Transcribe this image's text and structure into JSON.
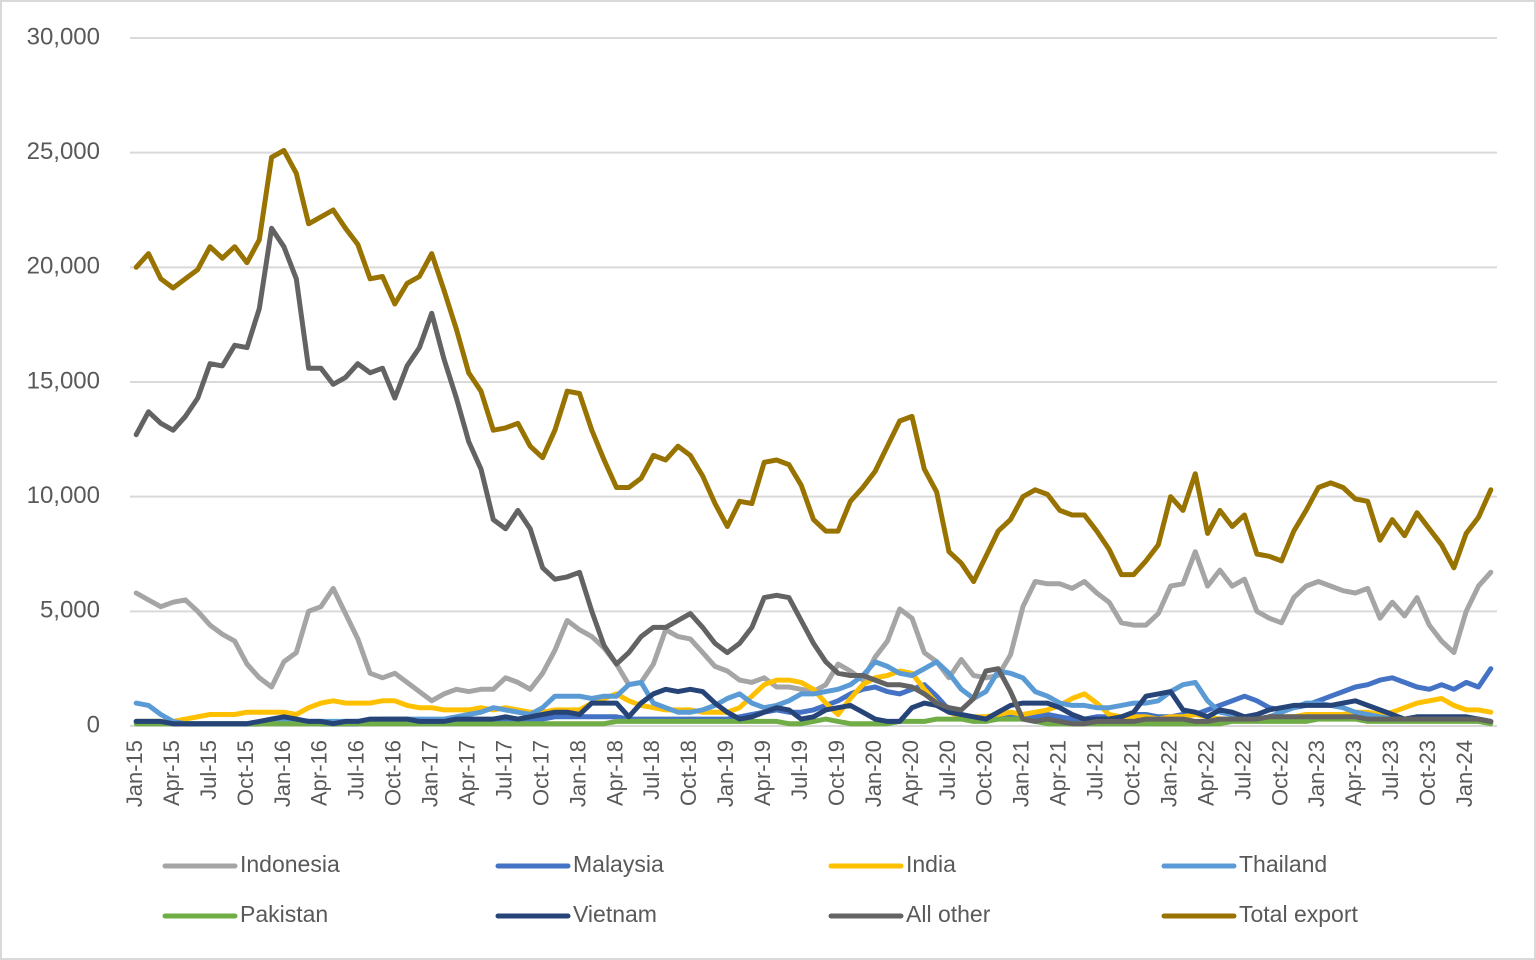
{
  "chart_data": {
    "type": "line",
    "categories": [
      "Jan-15",
      null,
      null,
      "Apr-15",
      null,
      null,
      "Jul-15",
      null,
      null,
      "Oct-15",
      null,
      null,
      "Jan-16",
      null,
      null,
      "Apr-16",
      null,
      null,
      "Jul-16",
      null,
      null,
      "Oct-16",
      null,
      null,
      "Jan-17",
      null,
      null,
      "Apr-17",
      null,
      null,
      "Jul-17",
      null,
      null,
      "Oct-17",
      null,
      null,
      "Jan-18",
      null,
      null,
      "Apr-18",
      null,
      null,
      "Jul-18",
      null,
      null,
      "Oct-18",
      null,
      null,
      "Jan-19",
      null,
      null,
      "Apr-19",
      null,
      null,
      "Jul-19",
      null,
      null,
      "Oct-19",
      null,
      null,
      "Jan-20",
      null,
      null,
      "Apr-20",
      null,
      null,
      "Jul-20",
      null,
      null,
      "Oct-20",
      null,
      null,
      "Jan-21",
      null,
      null,
      "Apr-21",
      null,
      null,
      "Jul-21",
      null,
      null,
      "Oct-21",
      null,
      null,
      "Jan-22",
      null,
      null,
      "Apr-22",
      null,
      null,
      "Jul-22",
      null,
      null,
      "Oct-22",
      null,
      null,
      "Jan-23",
      null,
      null,
      "Apr-23",
      null,
      null,
      "Jul-23",
      null,
      null,
      "Oct-23",
      null,
      null,
      "Jan-24",
      null,
      null
    ],
    "series": [
      {
        "name": "Indonesia",
        "color": "#a5a5a5",
        "values": [
          5800,
          5500,
          5200,
          5400,
          5500,
          5000,
          4400,
          4000,
          3700,
          2700,
          2100,
          1700,
          2800,
          3200,
          5000,
          5200,
          6000,
          4900,
          3800,
          2300,
          2100,
          2300,
          1900,
          1500,
          1100,
          1400,
          1600,
          1500,
          1600,
          1600,
          2100,
          1900,
          1600,
          2300,
          3300,
          4600,
          4200,
          3900,
          3400,
          2700,
          1800,
          1900,
          2700,
          4200,
          3900,
          3800,
          3200,
          2600,
          2400,
          2000,
          1900,
          2100,
          1700,
          1700,
          1600,
          1500,
          1800,
          2700,
          2400,
          2000,
          3000,
          3700,
          5100,
          4700,
          3200,
          2800,
          2100,
          2900,
          2200,
          2100,
          2200,
          3100,
          5200,
          6300,
          6200,
          6200,
          6000,
          6300,
          5800,
          5400,
          4500,
          4400,
          4400,
          4900,
          6100,
          6200,
          7600,
          6100,
          6800,
          6100,
          6400,
          5000,
          4700,
          4500,
          5600,
          6100,
          6300,
          6100,
          5900,
          5800,
          6000,
          4700,
          5400,
          4800,
          5600,
          4400,
          3700,
          3200,
          5000,
          6100,
          6700
        ]
      },
      {
        "name": "Malaysia",
        "color": "#4472c4",
        "values": [
          200,
          200,
          200,
          100,
          100,
          100,
          100,
          100,
          100,
          100,
          100,
          200,
          200,
          200,
          200,
          100,
          100,
          100,
          100,
          200,
          200,
          200,
          200,
          200,
          200,
          200,
          200,
          200,
          200,
          300,
          300,
          300,
          300,
          300,
          400,
          400,
          400,
          400,
          400,
          400,
          300,
          300,
          300,
          300,
          300,
          300,
          300,
          300,
          300,
          400,
          500,
          600,
          700,
          600,
          600,
          700,
          900,
          1100,
          1400,
          1600,
          1700,
          1500,
          1400,
          1600,
          1800,
          1300,
          700,
          400,
          300,
          300,
          300,
          400,
          400,
          400,
          500,
          400,
          300,
          300,
          400,
          400,
          400,
          500,
          500,
          400,
          400,
          500,
          500,
          700,
          900,
          1100,
          1300,
          1100,
          800,
          700,
          800,
          900,
          1100,
          1300,
          1500,
          1700,
          1800,
          2000,
          2100,
          1900,
          1700,
          1600,
          1800,
          1600,
          1900,
          1700,
          2500
        ]
      },
      {
        "name": "India",
        "color": "#ffc000",
        "values": [
          200,
          200,
          200,
          200,
          300,
          400,
          500,
          500,
          500,
          600,
          600,
          600,
          600,
          500,
          800,
          1000,
          1100,
          1000,
          1000,
          1000,
          1100,
          1100,
          900,
          800,
          800,
          700,
          700,
          700,
          800,
          700,
          800,
          700,
          600,
          600,
          700,
          700,
          700,
          1000,
          1200,
          1400,
          1100,
          900,
          800,
          700,
          700,
          700,
          600,
          600,
          600,
          800,
          1300,
          1800,
          2000,
          2000,
          1900,
          1600,
          1000,
          500,
          1200,
          1800,
          2100,
          2200,
          2400,
          2300,
          1600,
          1000,
          600,
          400,
          400,
          400,
          500,
          600,
          500,
          600,
          700,
          900,
          1200,
          1400,
          1000,
          500,
          400,
          400,
          400,
          300,
          400,
          400,
          500,
          400,
          300,
          300,
          300,
          300,
          300,
          400,
          400,
          500,
          500,
          500,
          500,
          600,
          600,
          500,
          600,
          800,
          1000,
          1100,
          1200,
          900,
          700,
          700,
          600
        ]
      },
      {
        "name": "Thailand",
        "color": "#5b9bd5",
        "values": [
          1000,
          900,
          500,
          200,
          100,
          100,
          100,
          100,
          100,
          100,
          100,
          200,
          200,
          200,
          200,
          200,
          200,
          200,
          200,
          200,
          300,
          300,
          300,
          300,
          300,
          300,
          400,
          500,
          600,
          800,
          700,
          600,
          500,
          800,
          1300,
          1300,
          1300,
          1200,
          1300,
          1300,
          1800,
          1900,
          1000,
          800,
          600,
          600,
          700,
          900,
          1200,
          1400,
          1000,
          800,
          900,
          1100,
          1400,
          1400,
          1500,
          1600,
          1800,
          2200,
          2800,
          2600,
          2300,
          2200,
          2500,
          2800,
          2300,
          1600,
          1200,
          1500,
          2400,
          2300,
          2100,
          1500,
          1300,
          1000,
          900,
          900,
          800,
          800,
          900,
          1000,
          1000,
          1100,
          1500,
          1800,
          1900,
          1100,
          600,
          500,
          300,
          300,
          400,
          600,
          800,
          1000,
          1000,
          900,
          800,
          600,
          500,
          400,
          300,
          300,
          300,
          300,
          300,
          300,
          300,
          300,
          200
        ]
      },
      {
        "name": "Pakistan",
        "color": "#70ad47",
        "values": [
          100,
          100,
          100,
          100,
          100,
          100,
          100,
          100,
          100,
          100,
          100,
          100,
          100,
          100,
          100,
          100,
          100,
          100,
          100,
          100,
          100,
          100,
          100,
          100,
          100,
          100,
          100,
          100,
          100,
          100,
          100,
          100,
          100,
          100,
          100,
          100,
          100,
          100,
          100,
          200,
          200,
          200,
          200,
          200,
          200,
          200,
          200,
          200,
          200,
          200,
          200,
          200,
          200,
          100,
          100,
          200,
          300,
          200,
          100,
          100,
          100,
          100,
          200,
          200,
          200,
          300,
          300,
          300,
          200,
          200,
          300,
          300,
          300,
          200,
          100,
          100,
          100,
          100,
          100,
          100,
          100,
          100,
          100,
          100,
          100,
          100,
          100,
          100,
          100,
          200,
          200,
          200,
          200,
          200,
          200,
          200,
          300,
          300,
          300,
          300,
          200,
          200,
          200,
          200,
          200,
          200,
          200,
          200,
          200,
          200,
          100
        ]
      },
      {
        "name": "Vietnam",
        "color": "#264478",
        "values": [
          200,
          200,
          200,
          100,
          100,
          100,
          100,
          100,
          100,
          100,
          200,
          300,
          400,
          300,
          200,
          200,
          100,
          200,
          200,
          300,
          300,
          300,
          300,
          200,
          200,
          200,
          300,
          300,
          300,
          300,
          400,
          300,
          400,
          500,
          600,
          600,
          500,
          1000,
          1000,
          1000,
          400,
          1000,
          1400,
          1600,
          1500,
          1600,
          1500,
          1000,
          600,
          300,
          400,
          600,
          800,
          700,
          300,
          400,
          700,
          800,
          900,
          600,
          300,
          200,
          200,
          800,
          1000,
          900,
          600,
          500,
          400,
          300,
          600,
          900,
          1000,
          1000,
          1000,
          800,
          500,
          300,
          300,
          300,
          400,
          600,
          1300,
          1400,
          1500,
          700,
          600,
          400,
          700,
          600,
          400,
          500,
          700,
          800,
          900,
          900,
          900,
          900,
          1000,
          1100,
          900,
          700,
          500,
          300,
          400,
          400,
          400,
          400,
          400,
          300,
          200
        ]
      },
      {
        "name": "All other",
        "color": "#636363",
        "values": [
          12700,
          13700,
          13200,
          12900,
          13500,
          14300,
          15800,
          15700,
          16600,
          16500,
          18200,
          21700,
          20900,
          19500,
          15600,
          15600,
          14900,
          15200,
          15800,
          15400,
          15600,
          14300,
          15700,
          16500,
          18000,
          16000,
          14300,
          12400,
          11200,
          9000,
          8600,
          9400,
          8600,
          6900,
          6400,
          6500,
          6700,
          5000,
          3500,
          2700,
          3200,
          3900,
          4300,
          4300,
          4600,
          4900,
          4300,
          3600,
          3200,
          3600,
          4300,
          5600,
          5700,
          5600,
          4600,
          3600,
          2800,
          2300,
          2200,
          2200,
          2000,
          1800,
          1800,
          1700,
          1400,
          1000,
          800,
          700,
          1200,
          2400,
          2500,
          1500,
          300,
          200,
          300,
          200,
          100,
          100,
          200,
          200,
          200,
          200,
          300,
          300,
          300,
          300,
          200,
          200,
          300,
          300,
          300,
          300,
          400,
          400,
          400,
          400,
          400,
          400,
          400,
          400,
          300,
          300,
          300,
          300,
          300,
          300,
          300,
          300,
          300,
          300,
          200
        ]
      },
      {
        "name": "Total export",
        "color": "#997300",
        "values": [
          20000,
          20600,
          19500,
          19100,
          19500,
          19900,
          20900,
          20400,
          20900,
          20200,
          21200,
          24800,
          25100,
          24100,
          21900,
          22200,
          22500,
          21700,
          21000,
          19500,
          19600,
          18400,
          19300,
          19600,
          20600,
          19000,
          17300,
          15400,
          14600,
          12900,
          13000,
          13200,
          12200,
          11700,
          12900,
          14600,
          14500,
          12900,
          11600,
          10400,
          10400,
          10800,
          11800,
          11600,
          12200,
          11800,
          10900,
          9700,
          8700,
          9800,
          9700,
          11500,
          11600,
          11400,
          10500,
          9000,
          8500,
          8500,
          9800,
          10400,
          11100,
          12200,
          13300,
          13500,
          11200,
          10200,
          7600,
          7100,
          6300,
          7400,
          8500,
          9000,
          10000,
          10300,
          10100,
          9400,
          9200,
          9200,
          8500,
          7700,
          6600,
          6600,
          7200,
          7900,
          10000,
          9400,
          11000,
          8400,
          9400,
          8700,
          9200,
          7500,
          7400,
          7200,
          8500,
          9400,
          10400,
          10600,
          10400,
          9900,
          9800,
          8100,
          9000,
          8300,
          9300,
          8600,
          7900,
          6900,
          8400,
          9100,
          10300
        ]
      }
    ],
    "ylim": [
      0,
      30000
    ],
    "yticks": [
      0,
      {
        "value": 5000,
        "label": "5,000"
      },
      {
        "value": 10000,
        "label": "10,000"
      },
      {
        "value": 15000,
        "label": "15,000"
      },
      {
        "value": 20000,
        "label": "20,000"
      },
      {
        "value": 25000,
        "label": "25,000"
      },
      {
        "value": 30000,
        "label": "30,000"
      }
    ],
    "grid": true,
    "legend": "bottom"
  }
}
